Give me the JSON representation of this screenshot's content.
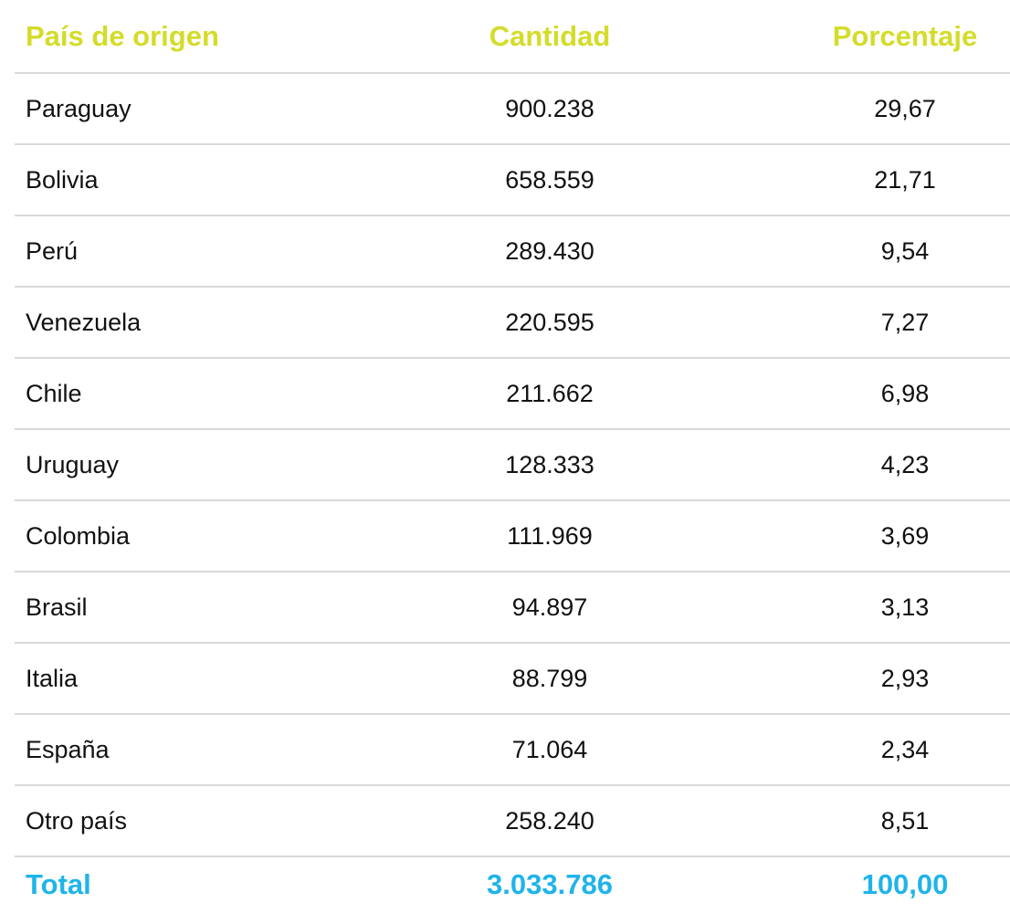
{
  "chart_data": {
    "type": "table",
    "columns": [
      "País de origen",
      "Cantidad",
      "Porcentaje"
    ],
    "rows": [
      {
        "country": "Paraguay",
        "quantity": "900.238",
        "percentage": "29,67"
      },
      {
        "country": "Bolivia",
        "quantity": "658.559",
        "percentage": "21,71"
      },
      {
        "country": "Perú",
        "quantity": "289.430",
        "percentage": "9,54"
      },
      {
        "country": "Venezuela",
        "quantity": "220.595",
        "percentage": "7,27"
      },
      {
        "country": "Chile",
        "quantity": "211.662",
        "percentage": "6,98"
      },
      {
        "country": "Uruguay",
        "quantity": "128.333",
        "percentage": "4,23"
      },
      {
        "country": "Colombia",
        "quantity": "111.969",
        "percentage": "3,69"
      },
      {
        "country": "Brasil",
        "quantity": "94.897",
        "percentage": "3,13"
      },
      {
        "country": "Italia",
        "quantity": "88.799",
        "percentage": "2,93"
      },
      {
        "country": "España",
        "quantity": "71.064",
        "percentage": "2,34"
      },
      {
        "country": "Otro país",
        "quantity": "258.240",
        "percentage": "8,51"
      }
    ],
    "total": {
      "label": "Total",
      "quantity": "3.033.786",
      "percentage": "100,00"
    }
  },
  "colors": {
    "header": "#d4dc2a",
    "total": "#1fb4ea",
    "text": "#111111",
    "divider": "#d9d9d9"
  }
}
